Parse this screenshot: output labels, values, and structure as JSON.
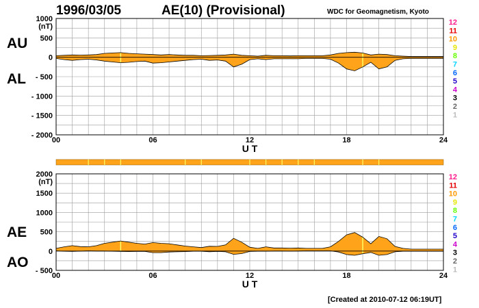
{
  "header": {
    "date": "1996/03/05",
    "title": "AE(10) (Provisional)",
    "source": "WDC for Geomagnetism, Kyoto",
    "footer": "[Created at 2010-07-12 06:19UT]"
  },
  "colors": {
    "fill": "#ffa31a",
    "line": "#000000",
    "grid": "#9a9a9a",
    "station_mark": "#ffff66",
    "bar": "#ffa31a"
  },
  "legend_numbers": [
    {
      "label": "12",
      "color": "#ff1a8c"
    },
    {
      "label": "11",
      "color": "#e60000"
    },
    {
      "label": "10",
      "color": "#ff9900"
    },
    {
      "label": "9",
      "color": "#e6e600"
    },
    {
      "label": "8",
      "color": "#66ff00"
    },
    {
      "label": "7",
      "color": "#00d5ff"
    },
    {
      "label": "6",
      "color": "#0066ff"
    },
    {
      "label": "5",
      "color": "#2200cc"
    },
    {
      "label": "4",
      "color": "#cc00cc"
    },
    {
      "label": "3",
      "color": "#000000"
    },
    {
      "label": "2",
      "color": "#666666"
    },
    {
      "label": "1",
      "color": "#bbbbbb"
    }
  ],
  "chart_data": [
    {
      "type": "area",
      "name": "top-panel",
      "series_labels": [
        "AU",
        "AL"
      ],
      "xlabel": "U T",
      "unit": "(nT)",
      "xlim": [
        0,
        24
      ],
      "ylim": [
        -2000,
        1000
      ],
      "xticks": [
        "00",
        "06",
        "12",
        "18",
        "24"
      ],
      "ytick_labels": [
        "1000",
        "500",
        "0",
        "- 500",
        "- 1000",
        "- 1500",
        "- 2000"
      ],
      "ytick_values": [
        1000,
        500,
        0,
        -500,
        -1000,
        -1500,
        -2000
      ],
      "grid": true,
      "x": [
        0,
        0.5,
        1,
        1.5,
        2,
        2.5,
        3,
        3.5,
        4,
        4.5,
        5,
        5.5,
        6,
        6.5,
        7,
        7.5,
        8,
        8.5,
        9,
        9.5,
        10,
        10.5,
        11,
        11.5,
        12,
        12.5,
        13,
        13.5,
        14,
        14.5,
        15,
        15.5,
        16,
        16.5,
        17,
        17.5,
        18,
        18.5,
        19,
        19.5,
        20,
        20.5,
        21,
        21.5,
        22,
        22.5,
        23,
        23.5,
        24
      ],
      "AU": [
        40,
        50,
        60,
        55,
        60,
        70,
        100,
        110,
        120,
        100,
        90,
        80,
        70,
        60,
        70,
        60,
        50,
        50,
        40,
        45,
        50,
        60,
        80,
        50,
        40,
        30,
        50,
        40,
        40,
        35,
        40,
        40,
        40,
        40,
        60,
        100,
        120,
        130,
        110,
        60,
        80,
        70,
        40,
        30,
        20,
        20,
        20,
        20,
        20
      ],
      "AL": [
        -30,
        -60,
        -80,
        -60,
        -50,
        -70,
        -100,
        -120,
        -140,
        -130,
        -110,
        -100,
        -150,
        -140,
        -120,
        -100,
        -80,
        -60,
        -50,
        -80,
        -70,
        -100,
        -250,
        -180,
        -60,
        -40,
        -60,
        -40,
        -40,
        -40,
        -40,
        -30,
        -30,
        -30,
        -50,
        -150,
        -300,
        -350,
        -250,
        -130,
        -300,
        -250,
        -80,
        -40,
        -30,
        -30,
        -30,
        -30,
        -30
      ]
    },
    {
      "type": "area",
      "name": "bottom-panel",
      "series_labels": [
        "AE",
        "AO"
      ],
      "xlabel": "U T",
      "unit": "(nT)",
      "xlim": [
        0,
        24
      ],
      "ylim": [
        -500,
        2000
      ],
      "xticks": [
        "00",
        "06",
        "12",
        "18",
        "24"
      ],
      "ytick_labels": [
        "2000",
        "1500",
        "1000",
        "500",
        "0",
        "- 500"
      ],
      "ytick_values": [
        2000,
        1500,
        1000,
        500,
        0,
        -500
      ],
      "grid": true,
      "x": [
        0,
        0.5,
        1,
        1.5,
        2,
        2.5,
        3,
        3.5,
        4,
        4.5,
        5,
        5.5,
        6,
        6.5,
        7,
        7.5,
        8,
        8.5,
        9,
        9.5,
        10,
        10.5,
        11,
        11.5,
        12,
        12.5,
        13,
        13.5,
        14,
        14.5,
        15,
        15.5,
        16,
        16.5,
        17,
        17.5,
        18,
        18.5,
        19,
        19.5,
        20,
        20.5,
        21,
        21.5,
        22,
        22.5,
        23,
        23.5,
        24
      ],
      "AE": [
        70,
        110,
        140,
        115,
        110,
        140,
        200,
        230,
        260,
        230,
        200,
        180,
        220,
        200,
        190,
        160,
        130,
        110,
        90,
        125,
        120,
        160,
        330,
        230,
        100,
        70,
        110,
        80,
        80,
        75,
        80,
        70,
        70,
        70,
        110,
        250,
        420,
        480,
        360,
        190,
        380,
        320,
        120,
        70,
        50,
        50,
        50,
        50,
        50
      ],
      "AO": [
        5,
        -5,
        -10,
        -3,
        5,
        0,
        0,
        -5,
        -10,
        -15,
        -10,
        -10,
        -40,
        -40,
        -25,
        -20,
        -15,
        -5,
        -5,
        -18,
        -10,
        -20,
        -85,
        -65,
        -10,
        -5,
        -5,
        0,
        0,
        -3,
        0,
        5,
        5,
        5,
        5,
        -25,
        -90,
        -110,
        -70,
        -35,
        -110,
        -90,
        -20,
        -5,
        -5,
        -5,
        -5,
        -5,
        -5
      ]
    }
  ],
  "station_bar": {
    "marks_ut": [
      2,
      3,
      4,
      8,
      9,
      12,
      13,
      14,
      15,
      16,
      19,
      20
    ]
  },
  "station_marks_ut": [
    4,
    19
  ]
}
